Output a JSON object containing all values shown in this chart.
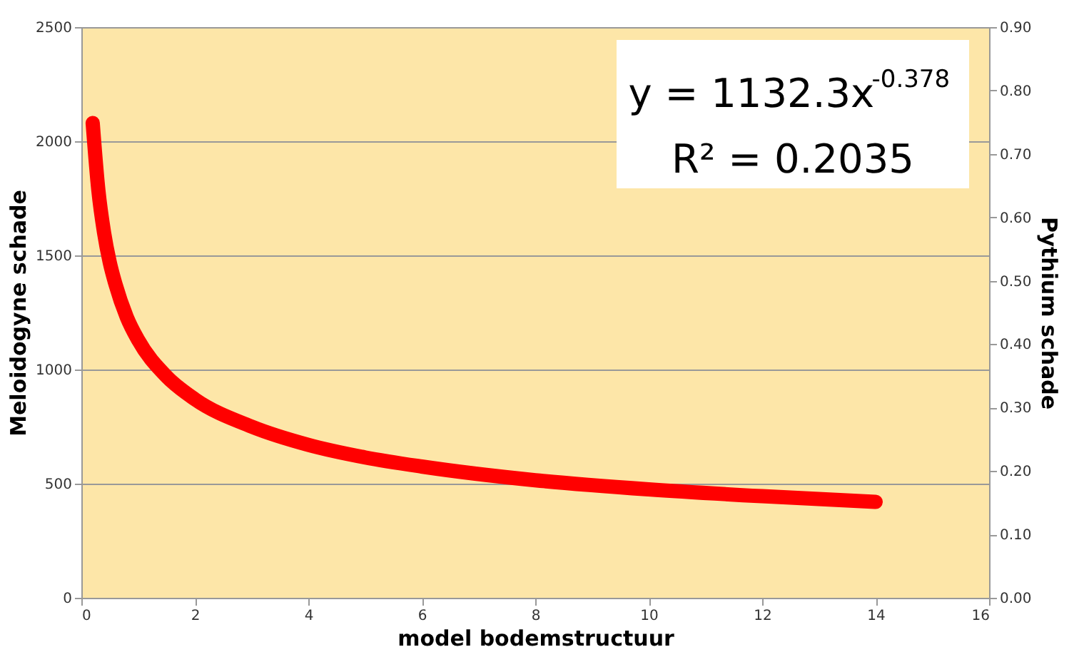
{
  "chart_data": {
    "type": "line",
    "xlabel": "model bodemstructuur",
    "ylabel": "Meloidogyne schade",
    "y2label": "Pythium schade",
    "x": [
      0.2,
      0.3,
      0.4,
      0.5,
      0.6,
      0.8,
      1,
      1.5,
      2,
      3,
      4,
      5,
      6,
      8,
      10,
      12,
      14
    ],
    "series": [
      {
        "color": "#ff0000",
        "values": [
          2080,
          1785,
          1600,
          1470,
          1375,
          1230,
          1130,
          970,
          870,
          750,
          670,
          615,
          575,
          515,
          475,
          445,
          420
        ]
      }
    ],
    "xlim": [
      0,
      16
    ],
    "xticks": [
      0,
      2,
      4,
      6,
      8,
      10,
      12,
      14,
      16
    ],
    "ylim": [
      0,
      2500
    ],
    "yticks": [
      0,
      500,
      1000,
      1500,
      2000,
      2500
    ],
    "y2lim": [
      0,
      0.9
    ],
    "y2ticks": [
      {
        "value": 0,
        "label": "0.00"
      },
      {
        "value": 0.1,
        "label": "0.10"
      },
      {
        "value": 0.2,
        "label": "0.20"
      },
      {
        "value": 0.3,
        "label": "0.30"
      },
      {
        "value": 0.4,
        "label": "0.40"
      },
      {
        "value": 0.5,
        "label": "0.50"
      },
      {
        "value": 0.6,
        "label": "0.60"
      },
      {
        "value": 0.7,
        "label": "0.70"
      },
      {
        "value": 0.8,
        "label": "0.80"
      },
      {
        "value": 0.9,
        "label": "0.90"
      }
    ],
    "annotations": [
      "y = 1132.3x$^{-0.378}$",
      "R² = 0.2035"
    ],
    "grid": "y",
    "marker": "none",
    "line_style": "solid"
  }
}
